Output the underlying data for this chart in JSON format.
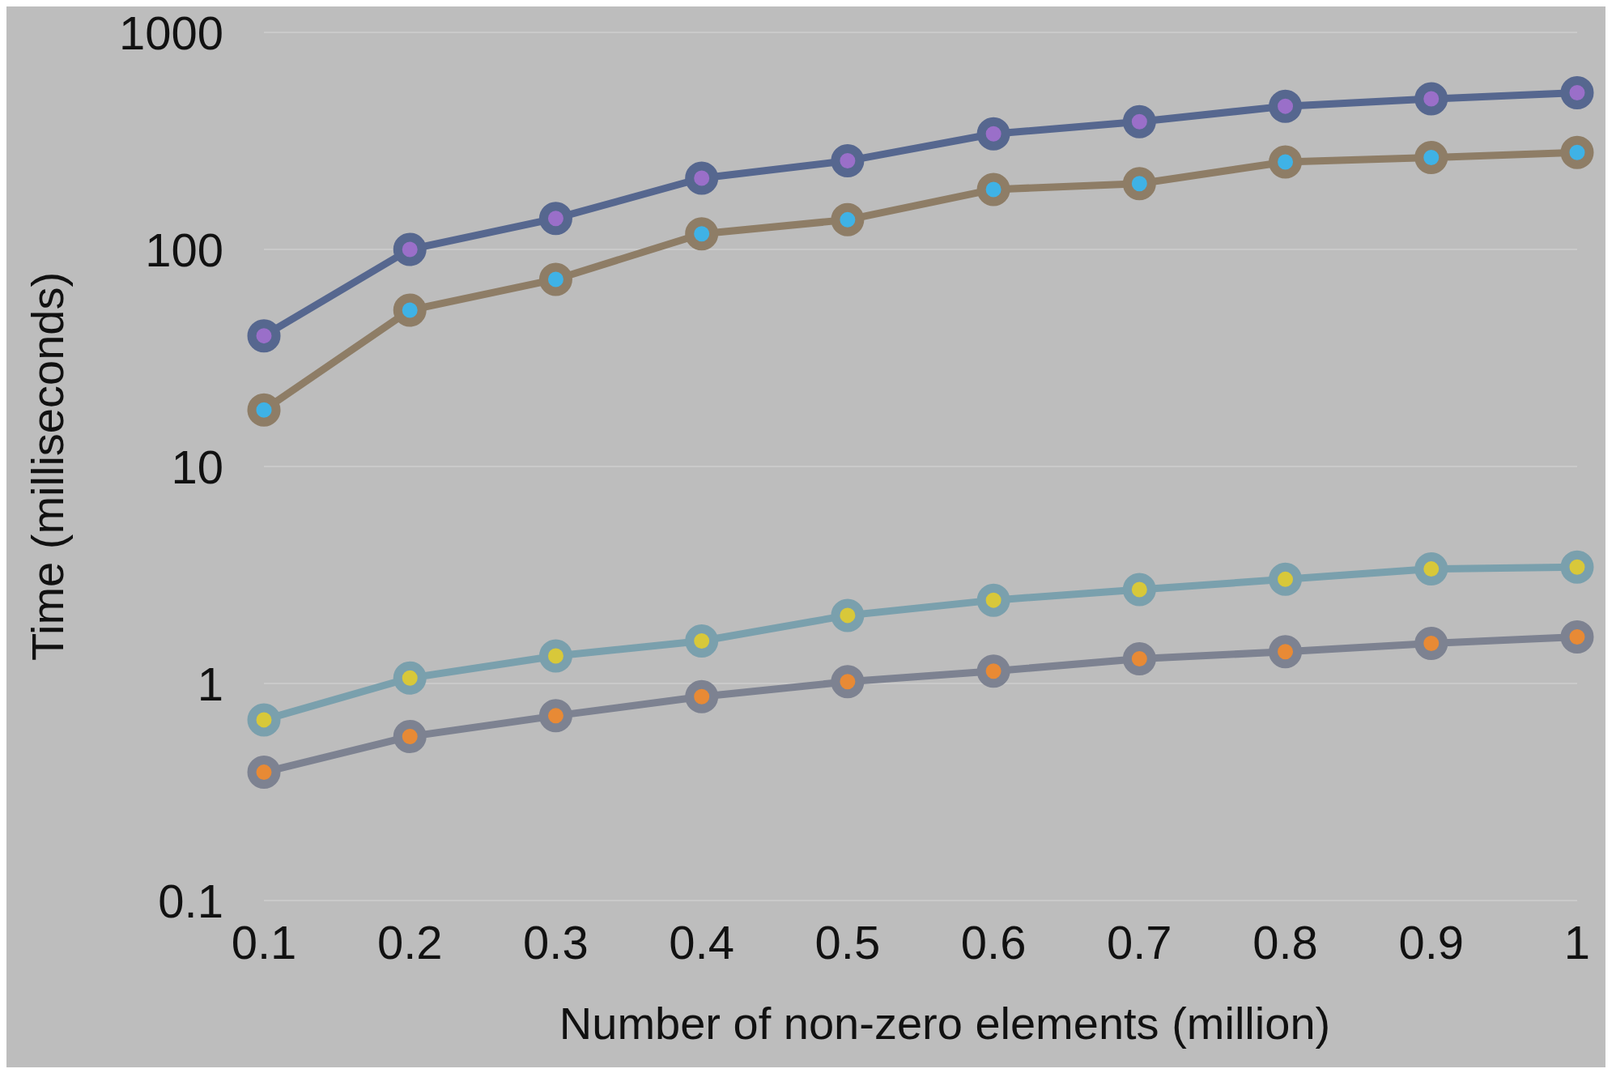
{
  "chart_data": {
    "type": "line",
    "xlabel": "Number of non-zero elements (million)",
    "ylabel": "Time (milliseconds)",
    "x": [
      0.1,
      0.2,
      0.3,
      0.4,
      0.5,
      0.6,
      0.7,
      0.8,
      0.9,
      1
    ],
    "xlim": [
      0.1,
      1
    ],
    "xticks": [
      0.1,
      0.2,
      0.3,
      0.4,
      0.5,
      0.6,
      0.7,
      0.8,
      0.9,
      1
    ],
    "ylim": [
      0.1,
      1000
    ],
    "yticks": [
      0.1,
      1,
      10,
      100,
      1000
    ],
    "log": "y",
    "grid": "y",
    "marker": "circle",
    "series": [
      {
        "color": "#56678f",
        "colors": [
          "#9a6fc9",
          "#9a6fc9",
          "#9a6fc9",
          "#9a6fc9",
          "#9a6fc9",
          "#9a6fc9",
          "#9a6fc9",
          "#9a6fc9",
          "#9a6fc9",
          "#9a6fc9"
        ],
        "values": [
          40,
          100,
          139,
          213,
          256,
          341,
          388,
          457,
          494,
          527
        ]
      },
      {
        "color": "#8e7d66",
        "colors": [
          "#3fb2e6",
          "#3fb2e6",
          "#3fb2e6",
          "#3fb2e6",
          "#3fb2e6",
          "#3fb2e6",
          "#3fb2e6",
          "#3fb2e6",
          "#3fb2e6",
          "#3fb2e6"
        ],
        "values": [
          18.2,
          52.5,
          72.8,
          118,
          137,
          189,
          201,
          253,
          265,
          280
        ]
      },
      {
        "color": "#7aa0ad",
        "colors": [
          "#d8c83a",
          "#d8c83a",
          "#d8c83a",
          "#d8c83a",
          "#d8c83a",
          "#d8c83a",
          "#d8c83a",
          "#d8c83a",
          "#d8c83a",
          "#d8c83a"
        ],
        "values": [
          0.68,
          1.06,
          1.34,
          1.57,
          2.06,
          2.42,
          2.71,
          3.02,
          3.37,
          3.44
        ]
      },
      {
        "color": "#7d8291",
        "colors": [
          "#e88a35",
          "#e88a35",
          "#e88a35",
          "#e88a35",
          "#e88a35",
          "#e88a35",
          "#e88a35",
          "#e88a35",
          "#e88a35",
          "#e88a35"
        ],
        "values": [
          0.39,
          0.57,
          0.71,
          0.87,
          1.02,
          1.14,
          1.3,
          1.4,
          1.53,
          1.64
        ]
      }
    ]
  }
}
